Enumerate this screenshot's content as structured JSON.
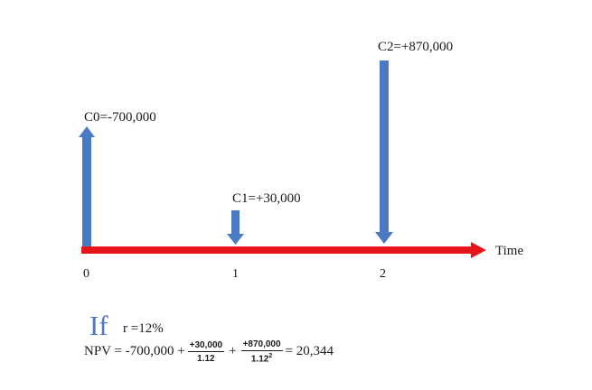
{
  "cash_flows": [
    {
      "label": "C0=-700,000",
      "time": "0",
      "amount": -700000,
      "direction": "up"
    },
    {
      "label": "C1=+30,000",
      "time": "1",
      "amount": 30000,
      "direction": "down"
    },
    {
      "label": "C2=+870,000",
      "time": "2",
      "amount": 870000,
      "direction": "down"
    }
  ],
  "axis": {
    "label": "Time",
    "ticks": [
      "0",
      "1",
      "2"
    ]
  },
  "condition": {
    "if_word": "If",
    "rate": "r =12%"
  },
  "formula": {
    "lhs": "NPV = -700,000 +",
    "term1_num": "+30,000",
    "term1_den": "1.12",
    "plus": "+",
    "term2_num": "+870,000",
    "term2_den_base": "1.12",
    "term2_den_exp": "2",
    "result": "= 20,344"
  },
  "colors": {
    "axis_red": "#e5151b",
    "arrow_blue": "#4a7ac4",
    "if_blue": "#4a7ac4",
    "text": "#1a1a1a"
  }
}
